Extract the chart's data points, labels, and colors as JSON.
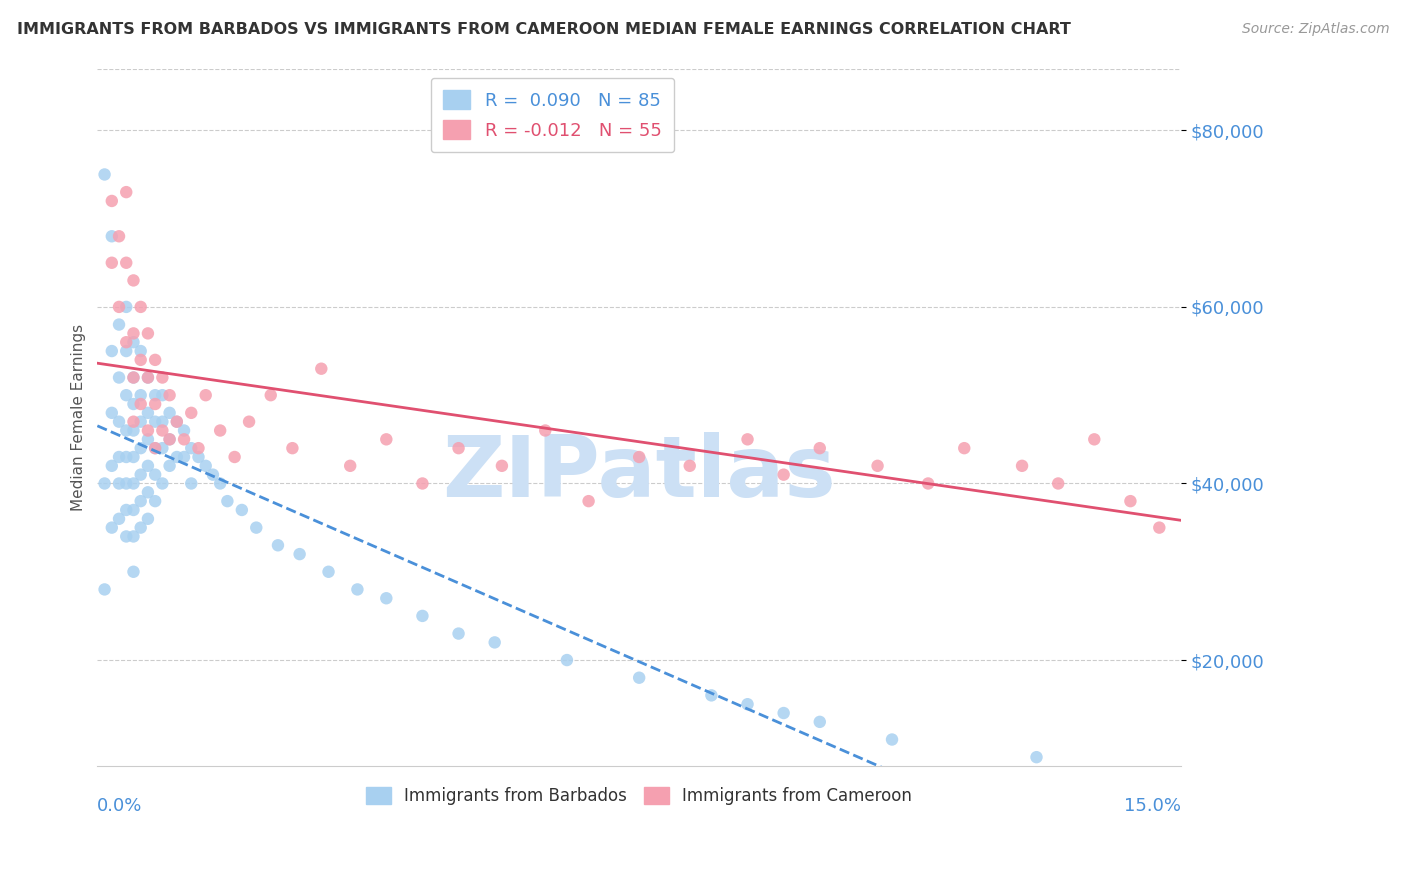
{
  "title": "IMMIGRANTS FROM BARBADOS VS IMMIGRANTS FROM CAMEROON MEDIAN FEMALE EARNINGS CORRELATION CHART",
  "source": "Source: ZipAtlas.com",
  "ylabel": "Median Female Earnings",
  "y_ticks": [
    20000,
    40000,
    60000,
    80000
  ],
  "y_tick_labels": [
    "$20,000",
    "$40,000",
    "$60,000",
    "$80,000"
  ],
  "xlim": [
    0.0,
    0.15
  ],
  "ylim": [
    8000,
    87000
  ],
  "legend_r1": "R =  0.090",
  "legend_n1": "N = 85",
  "legend_r2": "R = -0.012",
  "legend_n2": "N = 55",
  "barbados_color": "#a8d0f0",
  "cameroon_color": "#f5a0b0",
  "barbados_line_color": "#4a90d9",
  "cameroon_line_color": "#e05070",
  "title_color": "#333333",
  "tick_label_color": "#4a90d9",
  "watermark_color": "#cce0f5",
  "background_color": "#ffffff",
  "barbados_x": [
    0.001,
    0.001,
    0.001,
    0.002,
    0.002,
    0.002,
    0.002,
    0.002,
    0.003,
    0.003,
    0.003,
    0.003,
    0.003,
    0.003,
    0.004,
    0.004,
    0.004,
    0.004,
    0.004,
    0.004,
    0.004,
    0.004,
    0.005,
    0.005,
    0.005,
    0.005,
    0.005,
    0.005,
    0.005,
    0.005,
    0.005,
    0.006,
    0.006,
    0.006,
    0.006,
    0.006,
    0.006,
    0.006,
    0.007,
    0.007,
    0.007,
    0.007,
    0.007,
    0.007,
    0.008,
    0.008,
    0.008,
    0.008,
    0.008,
    0.009,
    0.009,
    0.009,
    0.009,
    0.01,
    0.01,
    0.01,
    0.011,
    0.011,
    0.012,
    0.012,
    0.013,
    0.013,
    0.014,
    0.015,
    0.016,
    0.017,
    0.018,
    0.02,
    0.022,
    0.025,
    0.028,
    0.032,
    0.036,
    0.04,
    0.045,
    0.05,
    0.055,
    0.065,
    0.075,
    0.085,
    0.09,
    0.095,
    0.1,
    0.11,
    0.13
  ],
  "barbados_y": [
    75000,
    40000,
    28000,
    68000,
    55000,
    48000,
    42000,
    35000,
    58000,
    52000,
    47000,
    43000,
    40000,
    36000,
    60000,
    55000,
    50000,
    46000,
    43000,
    40000,
    37000,
    34000,
    56000,
    52000,
    49000,
    46000,
    43000,
    40000,
    37000,
    34000,
    30000,
    55000,
    50000,
    47000,
    44000,
    41000,
    38000,
    35000,
    52000,
    48000,
    45000,
    42000,
    39000,
    36000,
    50000,
    47000,
    44000,
    41000,
    38000,
    50000,
    47000,
    44000,
    40000,
    48000,
    45000,
    42000,
    47000,
    43000,
    46000,
    43000,
    44000,
    40000,
    43000,
    42000,
    41000,
    40000,
    38000,
    37000,
    35000,
    33000,
    32000,
    30000,
    28000,
    27000,
    25000,
    23000,
    22000,
    20000,
    18000,
    16000,
    15000,
    14000,
    13000,
    11000,
    9000
  ],
  "cameroon_x": [
    0.002,
    0.002,
    0.003,
    0.003,
    0.004,
    0.004,
    0.004,
    0.005,
    0.005,
    0.005,
    0.005,
    0.006,
    0.006,
    0.006,
    0.007,
    0.007,
    0.007,
    0.008,
    0.008,
    0.008,
    0.009,
    0.009,
    0.01,
    0.01,
    0.011,
    0.012,
    0.013,
    0.014,
    0.015,
    0.017,
    0.019,
    0.021,
    0.024,
    0.027,
    0.031,
    0.035,
    0.04,
    0.045,
    0.05,
    0.056,
    0.062,
    0.068,
    0.075,
    0.082,
    0.09,
    0.095,
    0.1,
    0.108,
    0.115,
    0.12,
    0.128,
    0.133,
    0.138,
    0.143,
    0.147
  ],
  "cameroon_y": [
    72000,
    65000,
    68000,
    60000,
    73000,
    65000,
    56000,
    63000,
    57000,
    52000,
    47000,
    60000,
    54000,
    49000,
    57000,
    52000,
    46000,
    54000,
    49000,
    44000,
    52000,
    46000,
    50000,
    45000,
    47000,
    45000,
    48000,
    44000,
    50000,
    46000,
    43000,
    47000,
    50000,
    44000,
    53000,
    42000,
    45000,
    40000,
    44000,
    42000,
    46000,
    38000,
    43000,
    42000,
    45000,
    41000,
    44000,
    42000,
    40000,
    44000,
    42000,
    40000,
    45000,
    38000,
    35000
  ]
}
